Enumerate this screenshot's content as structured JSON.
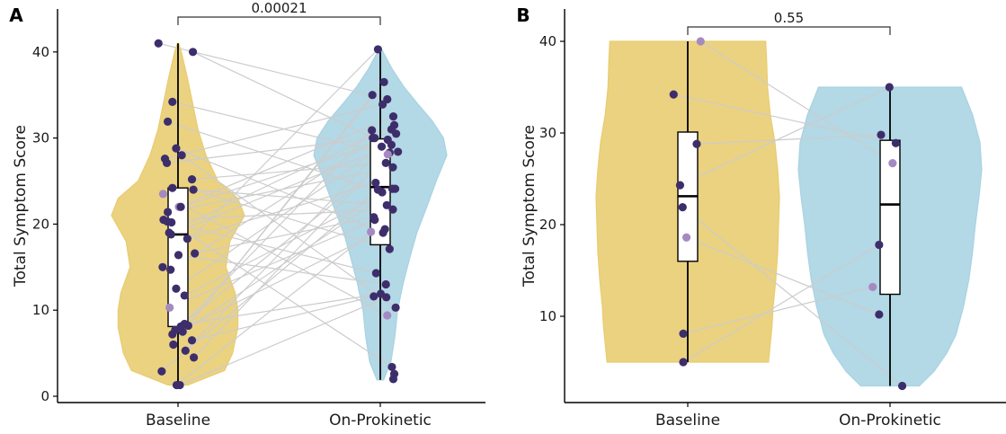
{
  "chart_data": [
    {
      "panel": "A",
      "type": "violin-box-scatter",
      "ylabel": "Total Symptom Score",
      "ylim": [
        0,
        42
      ],
      "yticks": [
        0,
        10,
        20,
        30,
        40
      ],
      "categories": [
        "Baseline",
        "On-Prokinetic"
      ],
      "pvalue": "0.00021",
      "colors": {
        "Baseline": "#e8cc6e",
        "On-Prokinetic": "#a8d3e2",
        "point": "#3d2e6b",
        "point_light": "#a58ac2",
        "line": "#cccccc"
      },
      "violin": {
        "Baseline": {
          "min": 1.3,
          "max": 41,
          "profile": [
            [
              1.3,
              0.15
            ],
            [
              3,
              0.7
            ],
            [
              5,
              0.82
            ],
            [
              8,
              0.9
            ],
            [
              10,
              0.9
            ],
            [
              12,
              0.86
            ],
            [
              15,
              0.72
            ],
            [
              18,
              0.78
            ],
            [
              21,
              1.0
            ],
            [
              23,
              0.9
            ],
            [
              25,
              0.6
            ],
            [
              28,
              0.42
            ],
            [
              31,
              0.3
            ],
            [
              34,
              0.22
            ],
            [
              37,
              0.14
            ],
            [
              40,
              0.05
            ],
            [
              41,
              0.01
            ]
          ]
        },
        "On-Prokinetic": {
          "min": 1.9,
          "max": 40.3,
          "profile": [
            [
              1.9,
              0.05
            ],
            [
              4,
              0.16
            ],
            [
              7,
              0.22
            ],
            [
              10,
              0.26
            ],
            [
              13,
              0.34
            ],
            [
              16,
              0.44
            ],
            [
              19,
              0.55
            ],
            [
              22,
              0.7
            ],
            [
              25,
              0.84
            ],
            [
              28,
              1.0
            ],
            [
              30,
              0.95
            ],
            [
              32,
              0.78
            ],
            [
              34,
              0.56
            ],
            [
              36,
              0.35
            ],
            [
              38,
              0.18
            ],
            [
              40.3,
              0.02
            ]
          ]
        }
      },
      "box": {
        "Baseline": {
          "min": 1.3,
          "q1": 8.1,
          "median": 18.8,
          "q3": 24.2,
          "max": 41
        },
        "On-Prokinetic": {
          "min": 1.9,
          "q1": 17.6,
          "median": 24.3,
          "q3": 29.9,
          "max": 40.3
        }
      },
      "points": {
        "Baseline": [
          41,
          40,
          34.2,
          31.9,
          28.8,
          28,
          27.6,
          27.1,
          25.2,
          24.2,
          24,
          23.5,
          22,
          22,
          21.4,
          20.5,
          20.3,
          20.2,
          19,
          18.8,
          18.3,
          16.6,
          16.4,
          15,
          14.7,
          12.5,
          11.7,
          10.3,
          8.4,
          8.2,
          8.1,
          7.7,
          7.5,
          7.2,
          6.5,
          6,
          5.3,
          4.5,
          2.9,
          1.3,
          1.3
        ],
        "Baseline_dx": [
          -0.42,
          0.32,
          -0.12,
          -0.22,
          -0.04,
          0.08,
          -0.28,
          -0.24,
          0.3,
          -0.12,
          0.33,
          -0.32,
          0.02,
          0.06,
          -0.22,
          -0.31,
          -0.23,
          -0.14,
          -0.19,
          -0.15,
          0.2,
          0.36,
          0.01,
          -0.33,
          -0.16,
          -0.04,
          0.14,
          -0.18,
          0.14,
          0.22,
          0.06,
          -0.06,
          0.1,
          -0.12,
          0.3,
          -0.1,
          0.16,
          0.34,
          -0.35,
          -0.03,
          0.04
        ],
        "Baseline_light": [
          11,
          12,
          27
        ],
        "On-Prokinetic": [
          40.3,
          36.5,
          35,
          34.5,
          33.9,
          32.5,
          31.5,
          31,
          30.9,
          30.5,
          30,
          30,
          29.8,
          29.2,
          29,
          28.4,
          28.3,
          28.1,
          27.1,
          26.6,
          24.8,
          24.1,
          24.1,
          24,
          23.7,
          22.2,
          21.7,
          20.8,
          20.5,
          19.4,
          19.1,
          19,
          17.1,
          14.3,
          13,
          11.9,
          11.6,
          11.5,
          10.3,
          9.4,
          3.4,
          2.6,
          2.0
        ],
        "On-Prokinetic_dx": [
          -0.05,
          0.08,
          -0.17,
          0.15,
          0.05,
          0.28,
          0.3,
          0.24,
          -0.18,
          0.34,
          -0.16,
          -0.12,
          0.16,
          0.24,
          0.03,
          0.38,
          0.2,
          0.16,
          0.12,
          0.27,
          -0.1,
          0.26,
          0.32,
          -0.05,
          0.04,
          0.14,
          0.27,
          -0.14,
          -0.12,
          0.1,
          -0.2,
          0.06,
          0.2,
          -0.09,
          0.12,
          0.01,
          -0.14,
          0.13,
          0.33,
          0.15,
          0.25,
          0.3,
          0.28
        ],
        "On-Prokinetic_light": [
          17,
          30,
          39
        ]
      }
    },
    {
      "panel": "B",
      "type": "violin-box-scatter",
      "ylabel": "Total Symptom Score",
      "ylim": [
        2,
        43
      ],
      "yticks": [
        10,
        20,
        30,
        40
      ],
      "categories": [
        "Baseline",
        "On-Prokinetic"
      ],
      "pvalue": "0.55",
      "colors": {
        "Baseline": "#e8cc6e",
        "On-Prokinetic": "#a8d3e2",
        "point": "#3d2e6b",
        "point_light": "#a58ac2",
        "line": "#cccccc"
      },
      "violin": {
        "Baseline": {
          "min": 5,
          "max": 40,
          "profile": [
            [
              5,
              0.88
            ],
            [
              7,
              0.9
            ],
            [
              9,
              0.92
            ],
            [
              11,
              0.93
            ],
            [
              14,
              0.96
            ],
            [
              17,
              0.98
            ],
            [
              20,
              0.99
            ],
            [
              23,
              1.0
            ],
            [
              26,
              0.98
            ],
            [
              29,
              0.95
            ],
            [
              32,
              0.9
            ],
            [
              35,
              0.87
            ],
            [
              38,
              0.86
            ],
            [
              40,
              0.85
            ]
          ]
        },
        "On-Prokinetic": {
          "min": 2.4,
          "max": 35,
          "profile": [
            [
              2.4,
              0.32
            ],
            [
              4,
              0.48
            ],
            [
              6,
              0.62
            ],
            [
              8,
              0.72
            ],
            [
              11,
              0.8
            ],
            [
              14,
              0.86
            ],
            [
              17,
              0.9
            ],
            [
              20,
              0.93
            ],
            [
              23,
              0.97
            ],
            [
              26,
              1.0
            ],
            [
              29,
              0.98
            ],
            [
              32,
              0.9
            ],
            [
              34,
              0.82
            ],
            [
              35,
              0.78
            ]
          ]
        }
      },
      "box": {
        "Baseline": {
          "min": 5,
          "q1": 16,
          "median": 23.1,
          "q3": 30.1,
          "max": 40
        },
        "On-Prokinetic": {
          "min": 2.4,
          "q1": 12.4,
          "median": 22.2,
          "q3": 29.2,
          "max": 35
        }
      },
      "points": {
        "Baseline": [
          40,
          34.2,
          28.8,
          24.3,
          21.9,
          18.6,
          8.1,
          5
        ],
        "Baseline_dx": [
          0.2,
          -0.22,
          0.14,
          -0.12,
          -0.08,
          -0.02,
          -0.07,
          -0.07
        ],
        "Baseline_light": [
          0,
          5
        ],
        "On-Prokinetic": [
          35,
          29.8,
          28.9,
          26.7,
          17.8,
          13.2,
          10.2,
          2.4
        ],
        "On-Prokinetic_dx": [
          -0.01,
          -0.14,
          0.09,
          0.04,
          -0.17,
          -0.27,
          -0.17,
          0.19
        ],
        "On-Prokinetic_light": [
          3,
          5
        ]
      }
    }
  ]
}
